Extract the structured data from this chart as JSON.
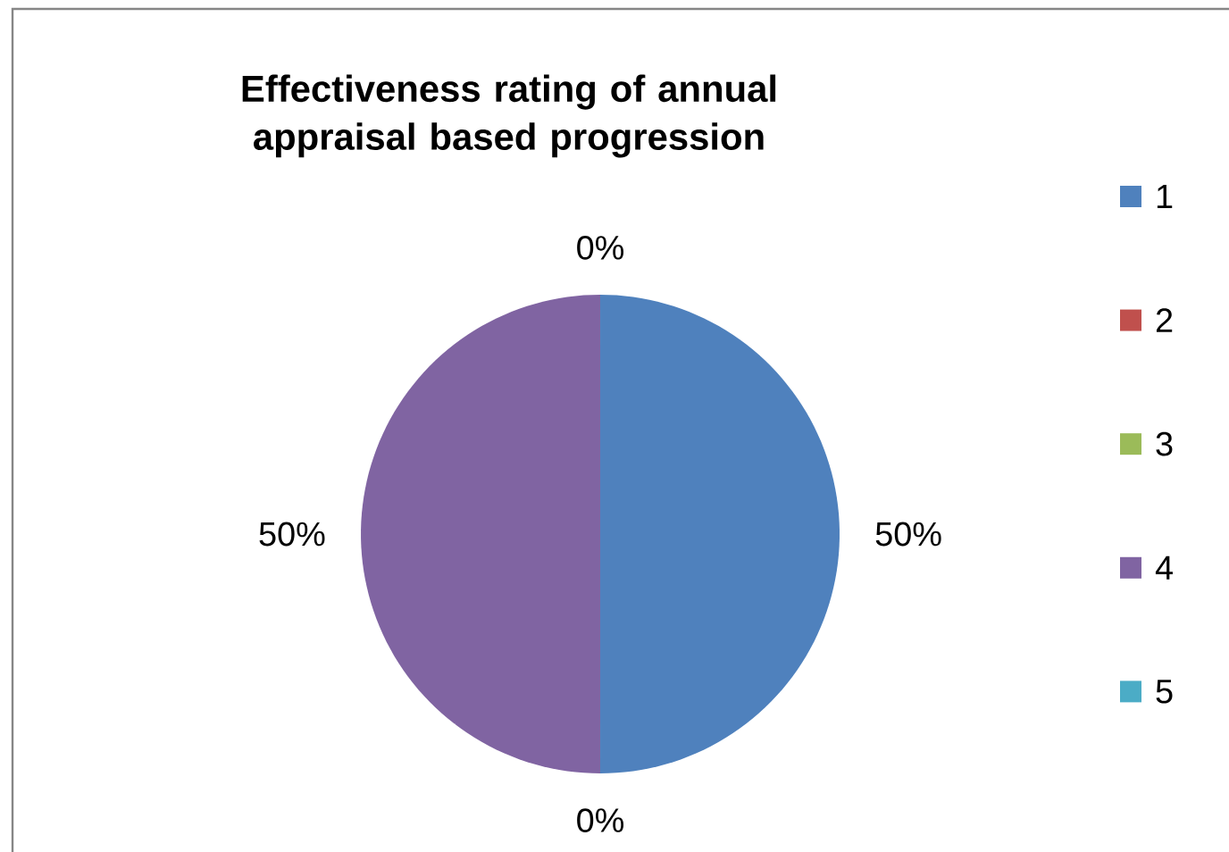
{
  "chart_data": {
    "type": "pie",
    "title": "Effectiveness rating of annual appraisal based progression",
    "categories": [
      "1",
      "2",
      "3",
      "4",
      "5"
    ],
    "values": [
      50,
      0,
      0,
      50,
      0
    ],
    "colors": [
      "#4f81bd",
      "#c0504d",
      "#9bbb59",
      "#8064a2",
      "#4bacc6"
    ],
    "value_labels": [
      "50%",
      "0%",
      null,
      "50%",
      "0%"
    ],
    "legend": "right"
  }
}
